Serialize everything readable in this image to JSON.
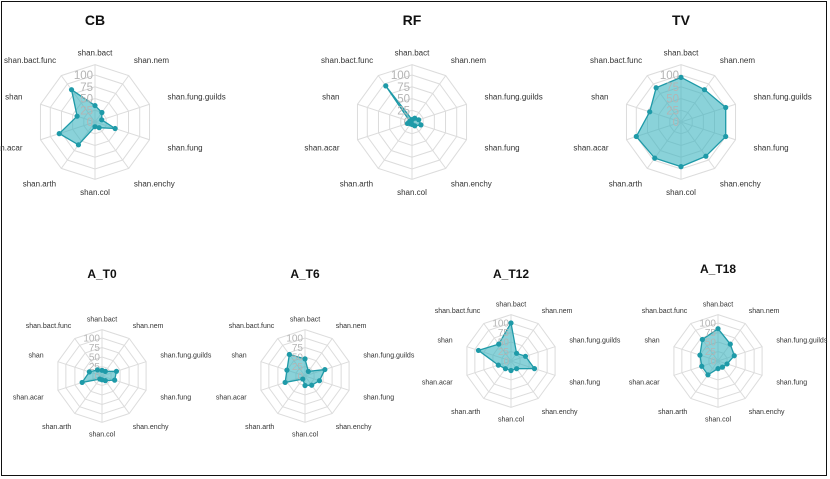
{
  "chart_data": [
    {
      "type": "radar",
      "title": "CB",
      "axes": [
        "shan.bact",
        "shan.nem",
        "shan.fung.guilds",
        "shan.fung",
        "shan.enchy",
        "shan.col",
        "shan.arth",
        "shan.acar",
        "shan",
        "shan.bact.func"
      ],
      "values": [
        35,
        25,
        15,
        45,
        15,
        10,
        60,
        80,
        40,
        85
      ],
      "ticks": [
        0,
        25,
        50,
        75,
        100
      ],
      "rlim": [
        0,
        100
      ]
    },
    {
      "type": "radar",
      "title": "RF",
      "axes": [
        "shan.bact",
        "shan.nem",
        "shan.fung.guilds",
        "shan.fung",
        "shan.enchy",
        "shan.col",
        "shan.arth",
        "shan.acar",
        "shan",
        "shan.bact.func"
      ],
      "values": [
        5,
        10,
        15,
        20,
        10,
        5,
        5,
        10,
        5,
        95
      ],
      "ticks": [
        0,
        25,
        50,
        75,
        100
      ],
      "rlim": [
        0,
        100
      ]
    },
    {
      "type": "radar",
      "title": "TV",
      "axes": [
        "shan.bact",
        "shan.nem",
        "shan.fung.guilds",
        "shan.fung",
        "shan.enchy",
        "shan.col",
        "shan.arth",
        "shan.acar",
        "shan",
        "shan.bact.func"
      ],
      "values": [
        95,
        85,
        100,
        100,
        90,
        95,
        95,
        100,
        70,
        90
      ],
      "ticks": [
        0,
        25,
        50,
        75,
        100
      ],
      "rlim": [
        0,
        100
      ]
    },
    {
      "type": "radar",
      "title": "A_T0",
      "axes": [
        "shan.bact",
        "shan.nem",
        "shan.fung.guilds",
        "shan.fung",
        "shan.enchy",
        "shan.col",
        "shan.arth",
        "shan.acar",
        "shan",
        "shan.bact.func"
      ],
      "values": [
        15,
        15,
        40,
        35,
        15,
        10,
        10,
        55,
        35,
        20
      ],
      "ticks": [
        0,
        25,
        50,
        75,
        100
      ],
      "rlim": [
        0,
        100
      ]
    },
    {
      "type": "radar",
      "title": "A_T6",
      "axes": [
        "shan.bact",
        "shan.nem",
        "shan.fung.guilds",
        "shan.fung",
        "shan.enchy",
        "shan.col",
        "shan.arth",
        "shan.acar",
        "shan",
        "shan.bact.func"
      ],
      "values": [
        45,
        15,
        55,
        40,
        30,
        25,
        10,
        55,
        50,
        70
      ],
      "ticks": [
        0,
        25,
        50,
        75,
        100
      ],
      "rlim": [
        0,
        100
      ]
    },
    {
      "type": "radar",
      "title": "A_T12",
      "axes": [
        "shan.bact",
        "shan.nem",
        "shan.fung.guilds",
        "shan.fung",
        "shan.enchy",
        "shan.col",
        "shan.arth",
        "shan.acar",
        "shan",
        "shan.bact.func"
      ],
      "values": [
        100,
        25,
        40,
        65,
        25,
        25,
        25,
        35,
        90,
        55
      ],
      "ticks": [
        0,
        25,
        50,
        75,
        100
      ],
      "rlim": [
        0,
        100
      ]
    },
    {
      "type": "radar",
      "title": "A_T18",
      "axes": [
        "shan.bact",
        "shan.nem",
        "shan.fung.guilds",
        "shan.fung",
        "shan.enchy",
        "shan.col",
        "shan.arth",
        "shan.acar",
        "shan",
        "shan.bact.func"
      ],
      "values": [
        85,
        55,
        45,
        25,
        20,
        20,
        45,
        45,
        50,
        70
      ],
      "ticks": [
        0,
        25,
        50,
        75,
        100
      ],
      "rlim": [
        0,
        100
      ]
    }
  ],
  "colors": {
    "fill": "#3cb4c0",
    "stroke": "#1e9aa8",
    "point": "#1e9aa8",
    "grid": "#dcdcdc",
    "tick": "#b4b4b4",
    "label": "#333333",
    "title": "#111111"
  }
}
